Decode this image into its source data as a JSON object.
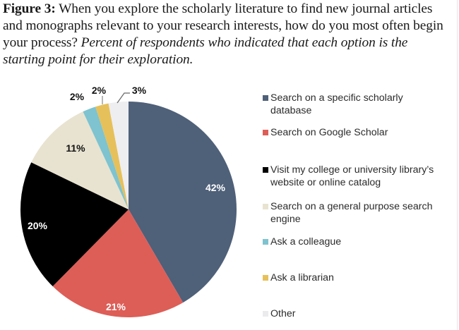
{
  "caption": {
    "figure_label": "Figure 3:",
    "lines": [
      " When you explore the scholarly literature to find new journal articles",
      "and monographs relevant to your research interests, how do you most often begin",
      "your process? "
    ],
    "note_line_3": "Percent of respondents who indicated that each option is the",
    "note_line_4": "starting point for their exploration."
  },
  "chart_data": {
    "type": "pie",
    "title": "Figure 3: When you explore the scholarly literature to find new journal articles and monographs relevant to your research interests, how do you most often begin your process?",
    "subtitle": "Percent of respondents who indicated that each option is the starting point for their exploration.",
    "start_angle": "12 o'clock, clockwise",
    "legend_position": "right",
    "categories": [
      "Search on a specific scholarly database",
      "Search on Google Scholar",
      "Visit my college or university library’s website or online catalog",
      "Search on a general purpose search engine",
      "Ask a colleague",
      "Ask a librarian",
      "Other"
    ],
    "values": [
      42,
      21,
      20,
      11,
      2,
      2,
      3
    ],
    "value_labels": [
      "42%",
      "21%",
      "20%",
      "11%",
      "2%",
      "2%",
      "3%"
    ],
    "colors": [
      "#4f6079",
      "#dd5e57",
      "#000000",
      "#e8e3d0",
      "#7ec3cf",
      "#e6c05a",
      "#eeeef1"
    ],
    "label_colors": [
      "#ffffff",
      "#ffffff",
      "#ffffff",
      "#111111",
      "#111111",
      "#111111",
      "#111111"
    ]
  },
  "legend": {
    "items": [
      {
        "line1": "Search on a specific scholarly",
        "line2": "database",
        "color": "#4f6079"
      },
      {
        "line1": "Search on Google Scholar",
        "line2": "",
        "color": "#dd5e57"
      },
      {
        "line1": "Visit my college or university library’s",
        "line2": "website or online catalog",
        "color": "#000000"
      },
      {
        "line1": "Search on a general purpose search",
        "line2": "engine",
        "color": "#e8e3d0"
      },
      {
        "line1": "Ask a colleague",
        "line2": "",
        "color": "#7ec3cf"
      },
      {
        "line1": "Ask a librarian",
        "line2": "",
        "color": "#e6c05a"
      },
      {
        "line1": "Other",
        "line2": "",
        "color": "#ebebee"
      }
    ]
  }
}
